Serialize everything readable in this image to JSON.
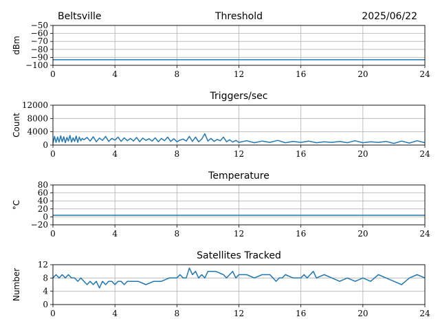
{
  "header": {
    "station": "Beltsville",
    "date": "2025/06/22"
  },
  "colors": {
    "series": "#1f77b4",
    "grid": "#b0b0b0"
  },
  "chart_data": [
    {
      "id": "threshold",
      "type": "line",
      "title": "Threshold",
      "ylabel": "dBm",
      "xlim": [
        0,
        24
      ],
      "ylim": [
        -100,
        -50
      ],
      "xticks": [
        0,
        4,
        8,
        12,
        16,
        20,
        24
      ],
      "yticks": [
        -100,
        -90,
        -80,
        -70,
        -60,
        -50
      ],
      "grid": true,
      "x": [
        0,
        1,
        2,
        3,
        4,
        5,
        6,
        7,
        8,
        9,
        10,
        11,
        12,
        13,
        14,
        15,
        16,
        17,
        18,
        19,
        20,
        21,
        22,
        23,
        24
      ],
      "y": [
        -93,
        -93,
        -93,
        -93,
        -93,
        -93,
        -93,
        -93,
        -93,
        -93,
        -93,
        -93,
        -93,
        -93,
        -93,
        -93,
        -93,
        -93,
        -93,
        -93,
        -93,
        -93,
        -93,
        -93,
        -93
      ]
    },
    {
      "id": "triggers",
      "type": "line",
      "title": "Triggers/sec",
      "ylabel": "Count",
      "xlim": [
        0,
        24
      ],
      "ylim": [
        0,
        12000
      ],
      "xticks": [
        0,
        4,
        8,
        12,
        16,
        20,
        24
      ],
      "yticks": [
        0,
        4000,
        8000,
        12000
      ],
      "grid": true,
      "x": [
        0,
        0.1,
        0.2,
        0.3,
        0.4,
        0.5,
        0.6,
        0.7,
        0.8,
        0.9,
        1.0,
        1.1,
        1.2,
        1.3,
        1.4,
        1.5,
        1.6,
        1.7,
        1.8,
        1.9,
        2.0,
        2.2,
        2.4,
        2.6,
        2.8,
        3.0,
        3.2,
        3.4,
        3.6,
        3.8,
        4.0,
        4.2,
        4.4,
        4.6,
        4.8,
        5.0,
        5.2,
        5.4,
        5.6,
        5.8,
        6.0,
        6.2,
        6.4,
        6.6,
        6.8,
        7.0,
        7.2,
        7.4,
        7.6,
        7.8,
        8.0,
        8.2,
        8.4,
        8.6,
        8.8,
        9.0,
        9.2,
        9.4,
        9.6,
        9.8,
        10.0,
        10.2,
        10.4,
        10.6,
        10.8,
        11.0,
        11.2,
        11.4,
        11.6,
        11.8,
        12.0,
        12.5,
        13.0,
        13.5,
        14.0,
        14.5,
        15.0,
        15.5,
        16.0,
        16.5,
        17.0,
        17.5,
        18.0,
        18.5,
        19.0,
        19.5,
        20.0,
        20.5,
        21.0,
        21.5,
        22.0,
        22.5,
        23.0,
        23.5,
        24.0
      ],
      "y": [
        500,
        2600,
        800,
        2400,
        900,
        2800,
        1000,
        2500,
        700,
        2300,
        1200,
        2900,
        900,
        2200,
        1100,
        2700,
        800,
        2400,
        1300,
        2000,
        1600,
        2300,
        1200,
        2500,
        1000,
        2100,
        1400,
        2600,
        1100,
        2000,
        1500,
        2400,
        1100,
        2200,
        1300,
        2000,
        1200,
        2300,
        1000,
        2100,
        1400,
        1900,
        1200,
        2200,
        1000,
        2000,
        1300,
        2400,
        1100,
        1900,
        1000,
        1500,
        1800,
        1200,
        2600,
        1100,
        2400,
        1000,
        1800,
        3400,
        1200,
        2000,
        1100,
        1700,
        1300,
        2400,
        1000,
        1600,
        900,
        1400,
        800,
        1300,
        700,
        1200,
        800,
        1400,
        700,
        1100,
        800,
        1200,
        700,
        1000,
        800,
        1100,
        700,
        1300,
        700,
        1000,
        800,
        1100,
        500,
        1200,
        600,
        1300,
        700
      ]
    },
    {
      "id": "temperature",
      "type": "line",
      "title": "Temperature",
      "ylabel": "°C",
      "xlim": [
        0,
        24
      ],
      "ylim": [
        -20,
        80
      ],
      "xticks": [
        0,
        4,
        8,
        12,
        16,
        20,
        24
      ],
      "yticks": [
        -20,
        0,
        20,
        40,
        60,
        80
      ],
      "grid": true,
      "x": [
        0,
        2,
        4,
        6,
        8,
        10,
        12,
        14,
        16,
        18,
        20,
        22,
        24
      ],
      "y": [
        4,
        4,
        4,
        4,
        4,
        4,
        4,
        4,
        4,
        4,
        4,
        4,
        4
      ]
    },
    {
      "id": "satellites",
      "type": "line",
      "title": "Satellites Tracked",
      "ylabel": "Number",
      "xlim": [
        0,
        24
      ],
      "ylim": [
        0,
        12
      ],
      "xticks": [
        0,
        4,
        8,
        12,
        16,
        20,
        24
      ],
      "yticks": [
        0,
        4,
        8,
        12
      ],
      "grid": true,
      "x": [
        0,
        0.2,
        0.4,
        0.6,
        0.8,
        1.0,
        1.2,
        1.4,
        1.6,
        1.8,
        2.0,
        2.2,
        2.4,
        2.6,
        2.8,
        3.0,
        3.2,
        3.4,
        3.6,
        3.8,
        4.0,
        4.2,
        4.4,
        4.6,
        4.8,
        5.0,
        5.5,
        6.0,
        6.5,
        7.0,
        7.5,
        8.0,
        8.2,
        8.4,
        8.6,
        8.8,
        9.0,
        9.2,
        9.4,
        9.6,
        9.8,
        10.0,
        10.5,
        11.0,
        11.2,
        11.4,
        11.6,
        11.8,
        12.0,
        12.5,
        13.0,
        13.5,
        14.0,
        14.2,
        14.4,
        14.6,
        14.8,
        15.0,
        15.5,
        16.0,
        16.2,
        16.4,
        16.6,
        16.8,
        17.0,
        17.5,
        18.0,
        18.5,
        19.0,
        19.5,
        20.0,
        20.5,
        21.0,
        21.5,
        22.0,
        22.5,
        23.0,
        23.5,
        24.0
      ],
      "y": [
        8,
        9,
        8,
        9,
        8,
        9,
        8,
        8,
        7,
        8,
        7,
        6,
        7,
        6,
        7,
        5,
        7,
        6,
        7,
        7,
        6,
        7,
        7,
        6,
        7,
        7,
        7,
        6,
        7,
        7,
        8,
        8,
        9,
        8,
        8,
        11,
        9,
        10,
        8,
        9,
        8,
        10,
        10,
        9,
        8,
        9,
        10,
        8,
        9,
        9,
        8,
        9,
        9,
        8,
        7,
        8,
        8,
        9,
        8,
        8,
        9,
        8,
        9,
        10,
        8,
        9,
        8,
        7,
        8,
        7,
        8,
        7,
        9,
        8,
        7,
        6,
        8,
        9,
        8
      ]
    }
  ]
}
